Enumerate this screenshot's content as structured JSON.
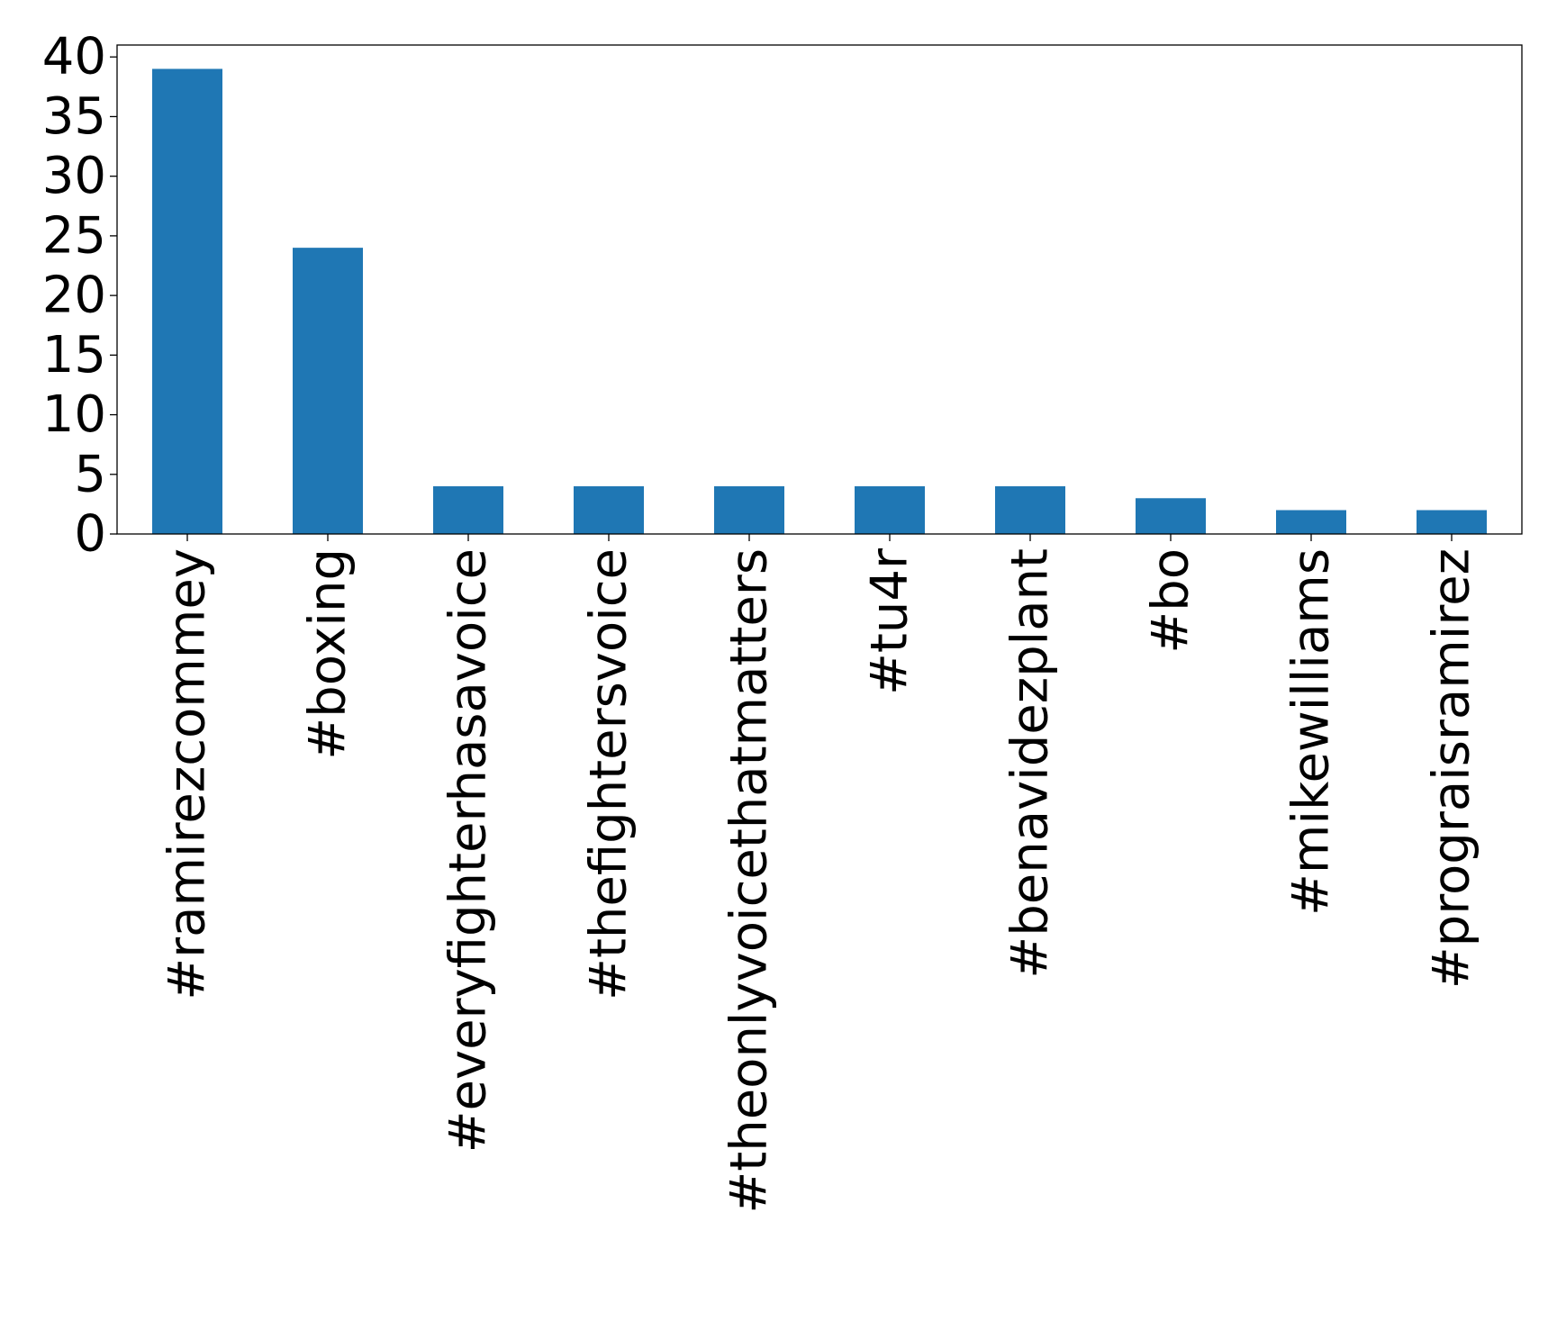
{
  "chart_data": {
    "type": "bar",
    "categories": [
      "#ramirezcommey",
      "#boxing",
      "#everyfighterhasavoice",
      "#thefightersvoice",
      "#theonlyvoicethatmatters",
      "#tu4r",
      "#benavidezplant",
      "#bo",
      "#mikewilliams",
      "#prograisramirez"
    ],
    "values": [
      39,
      24,
      4,
      4,
      4,
      4,
      4,
      3,
      2,
      2
    ],
    "ylim": [
      0,
      41
    ],
    "yticks": [
      0,
      5,
      10,
      15,
      20,
      25,
      30,
      35,
      40
    ],
    "title": "",
    "xlabel": "",
    "ylabel": "",
    "grid": false,
    "bar_color": "#1f77b4"
  }
}
